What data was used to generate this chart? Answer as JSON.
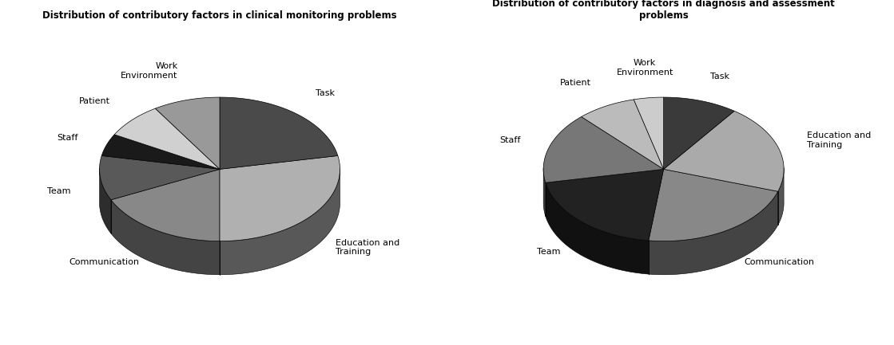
{
  "chart1": {
    "title": "Distribution of contributory factors in clinical monitoring problems",
    "labels": [
      "Task",
      "Education and\nTraining",
      "Communication",
      "Team",
      "Staff",
      "Patient",
      "Work\nEnvironment"
    ],
    "values": [
      22,
      28,
      18,
      10,
      5,
      8,
      9
    ],
    "colors": [
      "#4a4a4a",
      "#b0b0b0",
      "#888888",
      "#595959",
      "#1a1a1a",
      "#d0d0d0",
      "#999999"
    ],
    "startangle": 90
  },
  "chart2": {
    "title": "Distribution of contributory factors in diagnosis and assessment\nproblems",
    "labels": [
      "Task",
      "Education and\nTraining",
      "Communication",
      "Team",
      "Staff",
      "Patient",
      "Work\nEnvironment"
    ],
    "values": [
      10,
      20,
      22,
      20,
      16,
      8,
      4
    ],
    "colors": [
      "#3a3a3a",
      "#aaaaaa",
      "#888888",
      "#222222",
      "#777777",
      "#bbbbbb",
      "#cccccc"
    ],
    "startangle": 90
  },
  "fig_width": 11.19,
  "fig_height": 4.33,
  "dpi": 100
}
